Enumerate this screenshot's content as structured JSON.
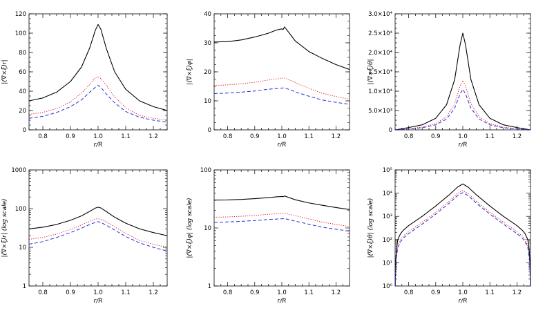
{
  "figure": {
    "colors": {
      "solid": "#000000",
      "dotted": "#e8161b",
      "dashed": "#1f2fd6"
    },
    "line_styles": [
      "solid",
      "dotted",
      "dashed"
    ]
  },
  "chart_data": [
    {
      "type": "line",
      "panel": "top-left",
      "ylabel": "|(∇×ξ)r|",
      "xlabel": "r/R",
      "xlim": [
        0.75,
        1.25
      ],
      "ylim": [
        0,
        120
      ],
      "yscale": "linear",
      "xticks": [
        0.8,
        0.9,
        1.0,
        1.1,
        1.2
      ],
      "xtick_labels": [
        "0.8",
        "0.9",
        "1.0",
        "1.1",
        "1.2"
      ],
      "yticks": [
        0,
        20,
        40,
        60,
        80,
        100,
        120
      ],
      "ytick_labels": [
        "0",
        "20",
        "40",
        "60",
        "80",
        "100",
        "120"
      ],
      "series": [
        {
          "style": "solid",
          "color": "#000000",
          "x": [
            0.75,
            0.8,
            0.85,
            0.9,
            0.94,
            0.97,
            0.99,
            1.0,
            1.01,
            1.03,
            1.06,
            1.1,
            1.15,
            1.2,
            1.25
          ],
          "y": [
            30,
            33,
            39,
            50,
            65,
            85,
            103,
            109,
            104,
            84,
            60,
            42,
            30,
            24,
            20
          ]
        },
        {
          "style": "dotted",
          "color": "#e8161b",
          "x": [
            0.75,
            0.8,
            0.85,
            0.9,
            0.94,
            0.97,
            0.99,
            1.0,
            1.01,
            1.03,
            1.06,
            1.1,
            1.15,
            1.2,
            1.25
          ],
          "y": [
            16,
            18,
            22,
            29,
            38,
            47,
            54,
            55,
            53,
            46,
            34,
            23,
            15,
            12,
            10
          ]
        },
        {
          "style": "dashed",
          "color": "#1f2fd6",
          "x": [
            0.75,
            0.8,
            0.85,
            0.9,
            0.94,
            0.97,
            0.99,
            1.0,
            1.01,
            1.03,
            1.06,
            1.1,
            1.15,
            1.2,
            1.25
          ],
          "y": [
            12,
            14,
            18,
            24,
            31,
            39,
            44,
            46,
            44,
            37,
            28,
            19,
            13,
            10,
            8
          ]
        }
      ]
    },
    {
      "type": "line",
      "panel": "top-middle",
      "ylabel": "|(∇×ξ)φ|",
      "xlabel": "r/R",
      "xlim": [
        0.75,
        1.25
      ],
      "ylim": [
        0,
        40
      ],
      "yscale": "linear",
      "xticks": [
        0.8,
        0.9,
        1.0,
        1.1,
        1.2
      ],
      "xtick_labels": [
        "0.8",
        "0.9",
        "1.0",
        "1.1",
        "1.2"
      ],
      "yticks": [
        0,
        10,
        20,
        30,
        40
      ],
      "ytick_labels": [
        "0",
        "10",
        "20",
        "30",
        "40"
      ],
      "series": [
        {
          "style": "solid",
          "color": "#000000",
          "x": [
            0.75,
            0.8,
            0.85,
            0.9,
            0.95,
            0.98,
            1.0,
            1.005,
            1.01,
            1.05,
            1.1,
            1.15,
            1.2,
            1.25
          ],
          "y": [
            30.3,
            30.4,
            31.0,
            32.0,
            33.3,
            34.4,
            34.8,
            34.6,
            35.5,
            30.6,
            27.0,
            24.6,
            22.5,
            20.8
          ]
        },
        {
          "style": "dotted",
          "color": "#e8161b",
          "x": [
            0.75,
            0.8,
            0.85,
            0.9,
            0.95,
            1.0,
            1.01,
            1.05,
            1.1,
            1.15,
            1.2,
            1.25
          ],
          "y": [
            15.3,
            15.5,
            15.9,
            16.4,
            17.2,
            17.8,
            17.9,
            16.3,
            14.3,
            12.6,
            11.5,
            10.6
          ]
        },
        {
          "style": "dashed",
          "color": "#1f2fd6",
          "x": [
            0.75,
            0.8,
            0.85,
            0.9,
            0.95,
            1.0,
            1.01,
            1.05,
            1.1,
            1.15,
            1.2,
            1.25
          ],
          "y": [
            12.5,
            12.7,
            13.0,
            13.4,
            14.0,
            14.4,
            14.5,
            13.1,
            11.6,
            10.3,
            9.5,
            8.8
          ]
        }
      ]
    },
    {
      "type": "line",
      "panel": "top-right",
      "ylabel": "|(∇×ξ)θ|",
      "xlabel": "r/R",
      "xlim": [
        0.75,
        1.25
      ],
      "ylim": [
        0,
        30000
      ],
      "yscale": "linear",
      "xticks": [
        0.8,
        0.9,
        1.0,
        1.1,
        1.2
      ],
      "xtick_labels": [
        "0.8",
        "0.9",
        "1.0",
        "1.1",
        "1.2"
      ],
      "yticks": [
        0,
        5000,
        10000,
        15000,
        20000,
        25000,
        30000
      ],
      "ytick_labels": [
        "0",
        "5.0×10³",
        "1.0×10⁴",
        "1.5×10⁴",
        "2.0×10⁴",
        "2.5×10⁴",
        "3.0×10⁴"
      ],
      "series": [
        {
          "style": "solid",
          "color": "#000000",
          "x": [
            0.75,
            0.8,
            0.85,
            0.9,
            0.94,
            0.97,
            0.99,
            1.0,
            1.01,
            1.03,
            1.06,
            1.1,
            1.15,
            1.2,
            1.25
          ],
          "y": [
            0,
            600,
            1300,
            3000,
            6500,
            13000,
            22000,
            25000,
            22000,
            13000,
            6500,
            3000,
            1300,
            600,
            0
          ]
        },
        {
          "style": "dotted",
          "color": "#e8161b",
          "x": [
            0.75,
            0.8,
            0.85,
            0.9,
            0.94,
            0.97,
            0.99,
            1.0,
            1.01,
            1.03,
            1.06,
            1.1,
            1.15,
            1.2,
            1.25
          ],
          "y": [
            0,
            300,
            700,
            1600,
            3400,
            6800,
            11300,
            12800,
            11300,
            6800,
            3400,
            1600,
            700,
            300,
            0
          ]
        },
        {
          "style": "dashed",
          "color": "#1f2fd6",
          "x": [
            0.75,
            0.8,
            0.85,
            0.9,
            0.94,
            0.97,
            0.99,
            1.0,
            1.01,
            1.03,
            1.06,
            1.1,
            1.15,
            1.2,
            1.25
          ],
          "y": [
            0,
            250,
            550,
            1300,
            2800,
            5600,
            9300,
            10500,
            9300,
            5600,
            2800,
            1300,
            550,
            250,
            0
          ]
        }
      ]
    },
    {
      "type": "line",
      "panel": "bottom-left",
      "ylabel": "|(∇×ξ)r| (log scale)",
      "xlabel": "r/R",
      "xlim": [
        0.75,
        1.25
      ],
      "ylim": [
        1,
        1000
      ],
      "yscale": "log",
      "xticks": [
        0.8,
        0.9,
        1.0,
        1.1,
        1.2
      ],
      "xtick_labels": [
        "0.8",
        "0.9",
        "1.0",
        "1.1",
        "1.2"
      ],
      "yticks": [
        1,
        10,
        100,
        1000
      ],
      "ytick_labels": [
        "1",
        "10",
        "100",
        "1000"
      ],
      "series": [
        {
          "style": "solid",
          "color": "#000000",
          "x": [
            0.75,
            0.8,
            0.85,
            0.9,
            0.94,
            0.97,
            0.99,
            1.0,
            1.01,
            1.03,
            1.06,
            1.1,
            1.15,
            1.2,
            1.25
          ],
          "y": [
            30,
            33,
            39,
            50,
            65,
            85,
            103,
            109,
            104,
            84,
            60,
            42,
            30,
            24,
            20
          ]
        },
        {
          "style": "dotted",
          "color": "#e8161b",
          "x": [
            0.75,
            0.8,
            0.85,
            0.9,
            0.94,
            0.97,
            0.99,
            1.0,
            1.01,
            1.03,
            1.06,
            1.1,
            1.15,
            1.2,
            1.25
          ],
          "y": [
            16,
            18,
            22,
            29,
            38,
            47,
            54,
            55,
            53,
            46,
            34,
            23,
            15,
            12,
            10
          ]
        },
        {
          "style": "dashed",
          "color": "#1f2fd6",
          "x": [
            0.75,
            0.8,
            0.85,
            0.9,
            0.94,
            0.97,
            0.99,
            1.0,
            1.01,
            1.03,
            1.06,
            1.1,
            1.15,
            1.2,
            1.25
          ],
          "y": [
            12,
            14,
            18,
            24,
            31,
            39,
            44,
            46,
            44,
            37,
            28,
            19,
            13,
            10,
            8
          ]
        }
      ]
    },
    {
      "type": "line",
      "panel": "bottom-middle",
      "ylabel": "|(∇×ξ)φ| (log scale)",
      "xlabel": "r/R",
      "xlim": [
        0.75,
        1.25
      ],
      "ylim": [
        1,
        100
      ],
      "yscale": "log",
      "xticks": [
        0.8,
        0.9,
        1.0,
        1.1,
        1.2
      ],
      "xtick_labels": [
        "0.8",
        "0.9",
        "1.0",
        "1.1",
        "1.2"
      ],
      "yticks": [
        1,
        10,
        100
      ],
      "ytick_labels": [
        "1",
        "10",
        "100"
      ],
      "series": [
        {
          "style": "solid",
          "color": "#000000",
          "x": [
            0.75,
            0.8,
            0.85,
            0.9,
            0.95,
            0.98,
            1.0,
            1.005,
            1.01,
            1.05,
            1.1,
            1.15,
            1.2,
            1.25
          ],
          "y": [
            30.3,
            30.4,
            31.0,
            32.0,
            33.3,
            34.4,
            34.8,
            34.6,
            35.5,
            30.6,
            27.0,
            24.6,
            22.5,
            20.8
          ]
        },
        {
          "style": "dotted",
          "color": "#e8161b",
          "x": [
            0.75,
            0.8,
            0.85,
            0.9,
            0.95,
            1.0,
            1.01,
            1.05,
            1.1,
            1.15,
            1.2,
            1.25
          ],
          "y": [
            15.3,
            15.5,
            15.9,
            16.4,
            17.2,
            17.8,
            17.9,
            16.3,
            14.3,
            12.6,
            11.5,
            10.6
          ]
        },
        {
          "style": "dashed",
          "color": "#1f2fd6",
          "x": [
            0.75,
            0.8,
            0.85,
            0.9,
            0.95,
            1.0,
            1.01,
            1.05,
            1.1,
            1.15,
            1.2,
            1.25
          ],
          "y": [
            12.5,
            12.7,
            13.0,
            13.4,
            14.0,
            14.4,
            14.5,
            13.1,
            11.6,
            10.3,
            9.5,
            8.8
          ]
        }
      ]
    },
    {
      "type": "line",
      "panel": "bottom-right",
      "ylabel": "|(∇×ξ)θ| (log scale)",
      "xlabel": "r/R",
      "xlim": [
        0.75,
        1.25
      ],
      "ylim": [
        1,
        100000
      ],
      "yscale": "log",
      "xticks": [
        0.8,
        0.9,
        1.0,
        1.1,
        1.2
      ],
      "xtick_labels": [
        "0.8",
        "0.9",
        "1.0",
        "1.1",
        "1.2"
      ],
      "yticks": [
        1,
        10,
        100,
        1000,
        10000,
        100000
      ],
      "ytick_labels": [
        "10⁰",
        "10¹",
        "10²",
        "10³",
        "10⁴",
        "10⁵"
      ],
      "series": [
        {
          "style": "solid",
          "color": "#000000",
          "x": [
            0.7505,
            0.752,
            0.755,
            0.76,
            0.77,
            0.78,
            0.8,
            0.85,
            0.9,
            0.95,
            0.98,
            1.0,
            1.02,
            1.05,
            1.1,
            1.15,
            1.2,
            1.22,
            1.23,
            1.24,
            1.245,
            1.248,
            1.2495
          ],
          "y": [
            1,
            10,
            40,
            100,
            180,
            250,
            400,
            1000,
            2800,
            8500,
            18000,
            25000,
            18000,
            8500,
            2800,
            1000,
            400,
            250,
            180,
            100,
            40,
            10,
            1
          ]
        },
        {
          "style": "dotted",
          "color": "#e8161b",
          "x": [
            0.7505,
            0.752,
            0.755,
            0.76,
            0.77,
            0.78,
            0.8,
            0.85,
            0.9,
            0.95,
            0.98,
            1.0,
            1.02,
            1.05,
            1.1,
            1.15,
            1.2,
            1.22,
            1.23,
            1.24,
            1.245,
            1.248,
            1.2495
          ],
          "y": [
            1,
            6,
            22,
            55,
            100,
            140,
            220,
            560,
            1500,
            4500,
            9500,
            13000,
            9500,
            4500,
            1500,
            560,
            220,
            140,
            100,
            55,
            22,
            6,
            1
          ]
        },
        {
          "style": "dashed",
          "color": "#1f2fd6",
          "x": [
            0.7505,
            0.752,
            0.755,
            0.76,
            0.77,
            0.78,
            0.8,
            0.85,
            0.9,
            0.95,
            0.98,
            1.0,
            1.02,
            1.05,
            1.1,
            1.15,
            1.2,
            1.22,
            1.23,
            1.24,
            1.245,
            1.248,
            1.2495
          ],
          "y": [
            1,
            5,
            18,
            45,
            80,
            115,
            180,
            460,
            1250,
            3700,
            7800,
            10500,
            7800,
            3700,
            1250,
            460,
            180,
            115,
            80,
            45,
            18,
            5,
            1
          ]
        }
      ]
    }
  ]
}
